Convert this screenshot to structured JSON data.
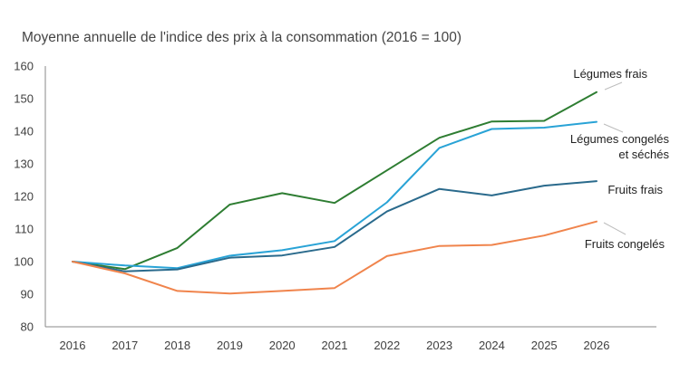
{
  "chart_data": {
    "type": "line",
    "title": "Moyenne annuelle de l'indice des prix à la consommation (2016 = 100)",
    "xlabel": "",
    "ylabel": "",
    "x": [
      "2016",
      "2017",
      "2018",
      "2019",
      "2020",
      "2021",
      "2022",
      "2023",
      "2024",
      "2025",
      "2026"
    ],
    "ylim": [
      80,
      160
    ],
    "yticks": [
      80,
      90,
      100,
      110,
      120,
      130,
      140,
      150,
      160
    ],
    "grid": false,
    "legend": "none",
    "series": [
      {
        "name": "Légumes frais",
        "label_lines": [
          "Légumes frais"
        ],
        "color": "#2e7d32",
        "values": [
          100,
          97.7,
          104.2,
          117.5,
          121.0,
          118.0,
          128.0,
          138.0,
          143.0,
          143.2,
          152.0
        ]
      },
      {
        "name": "Légumes congelés et séchés",
        "label_lines": [
          "Légumes congelés",
          "et séchés"
        ],
        "color": "#29a3d6",
        "values": [
          100,
          98.8,
          98.0,
          101.8,
          103.5,
          106.3,
          118.2,
          134.9,
          140.7,
          141.1,
          142.9
        ]
      },
      {
        "name": "Fruits frais",
        "label_lines": [
          "Fruits frais"
        ],
        "color": "#2a6a8c",
        "values": [
          100,
          97.0,
          97.6,
          101.2,
          101.9,
          104.5,
          115.4,
          122.3,
          120.3,
          123.3,
          124.7
        ]
      },
      {
        "name": "Fruits congelés",
        "label_lines": [
          "Fruits congelés"
        ],
        "color": "#f0844c",
        "values": [
          100,
          96.4,
          91.0,
          90.2,
          91.0,
          91.9,
          101.7,
          104.8,
          105.1,
          108.0,
          112.3
        ]
      }
    ]
  }
}
